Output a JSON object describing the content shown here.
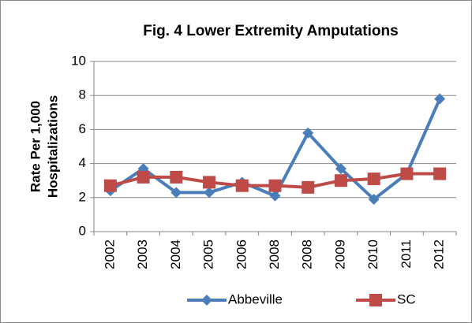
{
  "chart_data": {
    "type": "line",
    "title": "Fig. 4  Lower Extremity Amputations",
    "y_label": [
      "Rate Per 1,000",
      "Hospitalizations"
    ],
    "categories": [
      "2002",
      "2003",
      "2004",
      "2005",
      "2006",
      "2008",
      "2008",
      "2009",
      "2010",
      "2011",
      "2012"
    ],
    "series": [
      {
        "name": "Abbeville",
        "color": "#4a7ebb",
        "marker": "diamond",
        "values": [
          2.4,
          3.7,
          2.3,
          2.3,
          2.9,
          2.1,
          5.8,
          3.7,
          1.9,
          3.4,
          7.8
        ]
      },
      {
        "name": "SC",
        "color": "#be4b48",
        "marker": "square",
        "values": [
          2.7,
          3.2,
          3.2,
          2.9,
          2.7,
          2.7,
          2.6,
          3.0,
          3.1,
          3.4,
          3.4
        ]
      }
    ],
    "ylim": [
      0,
      10
    ],
    "yticks": [
      0,
      2,
      4,
      6,
      8,
      10
    ],
    "grid": true,
    "legend": "bottom"
  }
}
